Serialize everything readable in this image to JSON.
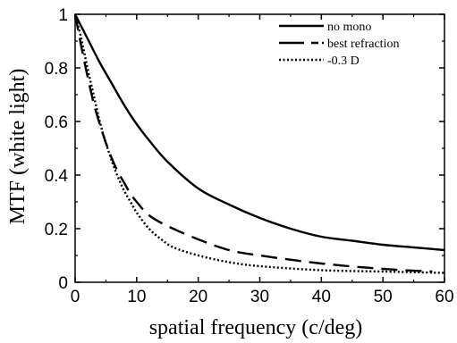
{
  "chart_data": {
    "type": "line",
    "xlabel": "spatial frequency (c/deg)",
    "ylabel": "MTF (white light)",
    "xlim": [
      0,
      60
    ],
    "ylim": [
      0,
      1
    ],
    "xticks": [
      0,
      10,
      20,
      30,
      40,
      50,
      60
    ],
    "yticks": [
      0,
      0.2,
      0.4,
      0.6,
      0.8,
      1
    ],
    "ytick_labels": [
      "0",
      "0.2",
      "0.4",
      "0.6",
      "0.8",
      "1"
    ],
    "grid": false,
    "legend_position": "top-right",
    "series": [
      {
        "name": "no mono",
        "style": "solid",
        "x": [
          0,
          2,
          4,
          6,
          8,
          10,
          12,
          15,
          20,
          25,
          30,
          35,
          40,
          45,
          50,
          55,
          60
        ],
        "y": [
          1.0,
          0.91,
          0.82,
          0.74,
          0.66,
          0.59,
          0.53,
          0.45,
          0.35,
          0.29,
          0.24,
          0.2,
          0.17,
          0.155,
          0.14,
          0.13,
          0.12
        ]
      },
      {
        "name": "best refraction",
        "style": "dashed",
        "x": [
          0,
          1,
          2,
          3,
          4,
          5,
          6,
          7,
          8,
          9,
          10,
          12,
          15,
          20,
          25,
          30,
          40,
          50,
          58
        ],
        "y": [
          1.0,
          0.88,
          0.77,
          0.67,
          0.59,
          0.52,
          0.46,
          0.41,
          0.37,
          0.33,
          0.3,
          0.25,
          0.21,
          0.16,
          0.12,
          0.1,
          0.07,
          0.05,
          0.04
        ]
      },
      {
        "name": "-0.3 D",
        "style": "dotted",
        "x": [
          0,
          1,
          2,
          3,
          4,
          5,
          6,
          7,
          8,
          9,
          10,
          12,
          14,
          16,
          20,
          25,
          30,
          40,
          50,
          60
        ],
        "y": [
          1.0,
          0.91,
          0.8,
          0.7,
          0.6,
          0.52,
          0.45,
          0.39,
          0.34,
          0.3,
          0.26,
          0.2,
          0.16,
          0.13,
          0.1,
          0.075,
          0.06,
          0.045,
          0.04,
          0.035
        ]
      }
    ]
  }
}
